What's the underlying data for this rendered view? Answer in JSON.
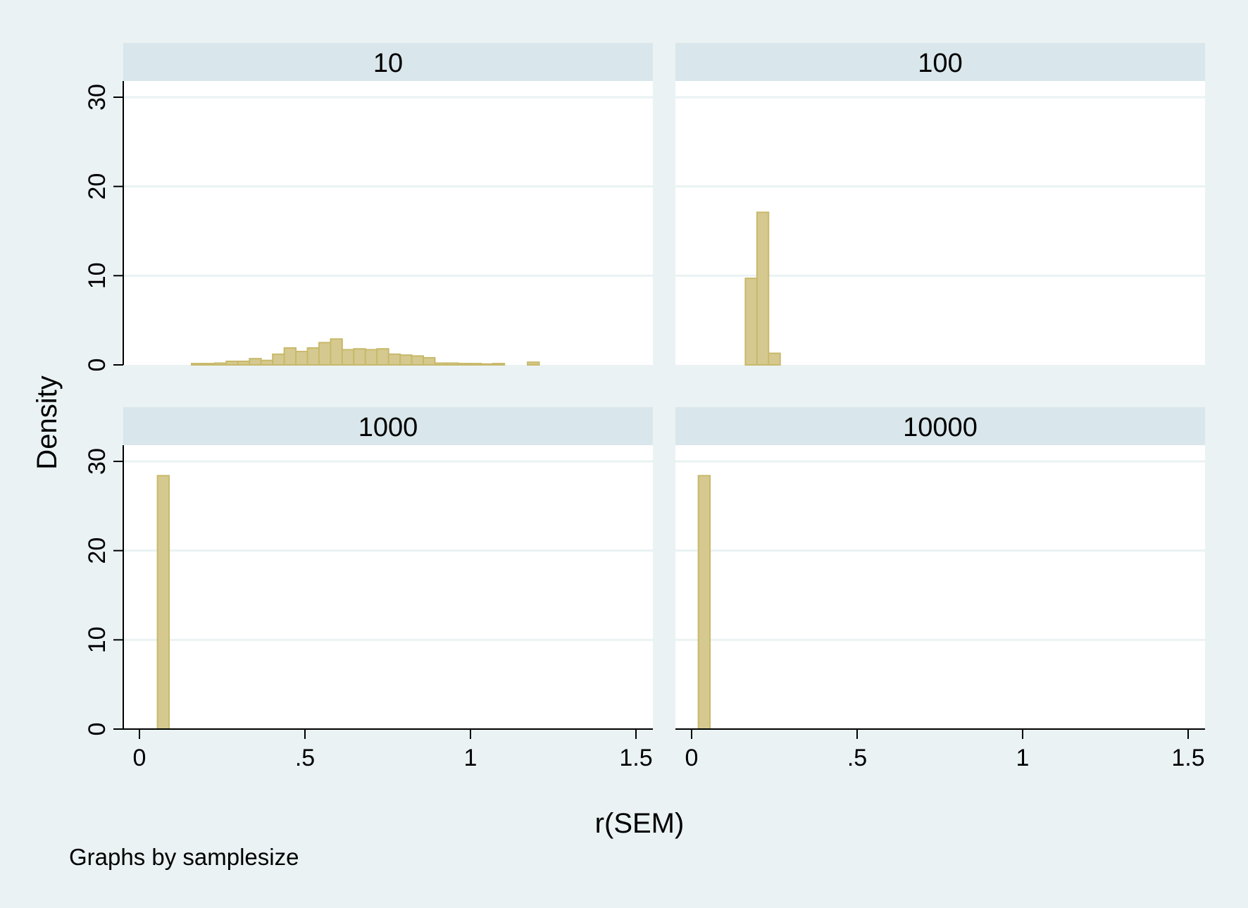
{
  "chart_data": {
    "type": "bar",
    "subtype": "histogram",
    "xlabel": "r(SEM)",
    "ylabel": "Density",
    "note": "Graphs by samplesize",
    "xlim": [
      -0.05,
      1.5
    ],
    "ylim": [
      0,
      30
    ],
    "xticks": [
      {
        "value": 0,
        "label": "0"
      },
      {
        "value": 0.5,
        "label": ".5"
      },
      {
        "value": 1,
        "label": "1"
      },
      {
        "value": 1.5,
        "label": "1.5"
      }
    ],
    "yticks": [
      {
        "value": 0,
        "label": "0"
      },
      {
        "value": 10,
        "label": "10"
      },
      {
        "value": 20,
        "label": "20"
      },
      {
        "value": 30,
        "label": "30"
      }
    ],
    "grid": true,
    "colors": {
      "background": "#eaf2f3",
      "plot": "#ffffff",
      "strip": "#d9e6eb",
      "bar_fill": "#d5c98f",
      "bar_edge": "#c8b96b",
      "grid": "#eaf2f3"
    },
    "panels": [
      {
        "title": "10",
        "bin_width": 0.035,
        "bins": [
          {
            "x": 0.175,
            "y": 0.15
          },
          {
            "x": 0.21,
            "y": 0.15
          },
          {
            "x": 0.245,
            "y": 0.2
          },
          {
            "x": 0.28,
            "y": 0.4
          },
          {
            "x": 0.315,
            "y": 0.4
          },
          {
            "x": 0.35,
            "y": 0.7
          },
          {
            "x": 0.385,
            "y": 0.5
          },
          {
            "x": 0.42,
            "y": 1.2
          },
          {
            "x": 0.455,
            "y": 1.9
          },
          {
            "x": 0.49,
            "y": 1.5
          },
          {
            "x": 0.525,
            "y": 1.9
          },
          {
            "x": 0.56,
            "y": 2.5
          },
          {
            "x": 0.595,
            "y": 2.9
          },
          {
            "x": 0.63,
            "y": 1.7
          },
          {
            "x": 0.665,
            "y": 1.8
          },
          {
            "x": 0.7,
            "y": 1.7
          },
          {
            "x": 0.735,
            "y": 1.8
          },
          {
            "x": 0.77,
            "y": 1.2
          },
          {
            "x": 0.805,
            "y": 1.1
          },
          {
            "x": 0.84,
            "y": 1.0
          },
          {
            "x": 0.875,
            "y": 0.8
          },
          {
            "x": 0.91,
            "y": 0.2
          },
          {
            "x": 0.945,
            "y": 0.2
          },
          {
            "x": 0.98,
            "y": 0.15
          },
          {
            "x": 1.015,
            "y": 0.15
          },
          {
            "x": 1.05,
            "y": 0.1
          },
          {
            "x": 1.085,
            "y": 0.15
          },
          {
            "x": 1.19,
            "y": 0.3
          }
        ]
      },
      {
        "title": "100",
        "bin_width": 0.035,
        "bins": [
          {
            "x": 0.18,
            "y": 9.7
          },
          {
            "x": 0.215,
            "y": 17.1
          },
          {
            "x": 0.25,
            "y": 1.3
          }
        ]
      },
      {
        "title": "1000",
        "bin_width": 0.035,
        "bins": [
          {
            "x": 0.072,
            "y": 28.4
          }
        ]
      },
      {
        "title": "10000",
        "bin_width": 0.035,
        "bins": [
          {
            "x": 0.038,
            "y": 28.4
          }
        ]
      }
    ]
  }
}
